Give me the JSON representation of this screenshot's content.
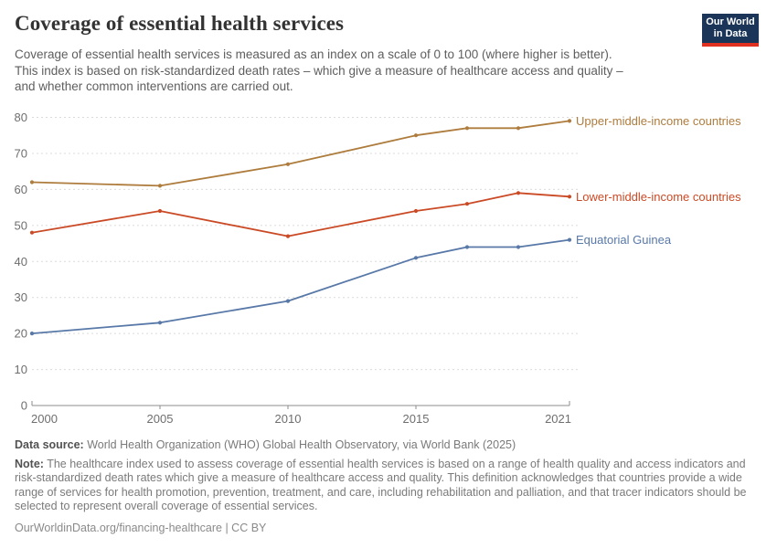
{
  "logo": {
    "line1": "Our World",
    "line2": "in Data",
    "navy": "#1B3559",
    "red": "#E0301F"
  },
  "chart_data": {
    "type": "line",
    "title": "Coverage of essential health services",
    "subtitle_lines": [
      "Coverage of essential health services is measured as an index on a scale of 0 to 100 (where higher is better).",
      "This index is based on risk-standardized death rates – which give a measure of healthcare access and quality –",
      "and whether common interventions are carried out."
    ],
    "x": [
      2000,
      2005,
      2010,
      2015,
      2017,
      2019,
      2021
    ],
    "xlim": [
      2000,
      2021
    ],
    "ylim": [
      0,
      80
    ],
    "xticks": [
      2000,
      2005,
      2010,
      2015,
      2021
    ],
    "yticks": [
      0,
      10,
      20,
      30,
      40,
      50,
      60,
      70,
      80
    ],
    "grid": true,
    "legend_position": "labels-at-line-end",
    "series": [
      {
        "name": "Upper-middle-income countries",
        "color": "#AE7C3D",
        "values": [
          62,
          61,
          67,
          75,
          77,
          77,
          79
        ]
      },
      {
        "name": "Lower-middle-income countries",
        "color": "#CB4A26",
        "values": [
          48,
          54,
          47,
          54,
          56,
          59,
          58
        ]
      },
      {
        "name": "Equatorial Guinea",
        "color": "#5878A8",
        "values": [
          20,
          23,
          29,
          41,
          44,
          44,
          46
        ]
      }
    ],
    "style": {
      "grid_color": "#DBDBDB",
      "axis_color": "#8E8E8E",
      "tick_label_color": "#6E6E6E"
    }
  },
  "footer": {
    "data_source_label": "Data source:",
    "data_source_text": " World Health Organization (WHO) Global Health Observatory, via World Bank (2025)",
    "note_label": "Note:",
    "note_text": " The healthcare index used to assess coverage of essential health services is based on a range of health quality and access indicators and risk-standardized death rates which give a measure of healthcare access and quality. This definition acknowledges that countries provide a wide range of services for health promotion, prevention, treatment, and care, including rehabilitation and palliation, and that tracer indicators should be selected to represent overall coverage of essential services.",
    "license_line": "OurWorldinData.org/financing-healthcare | CC BY"
  }
}
